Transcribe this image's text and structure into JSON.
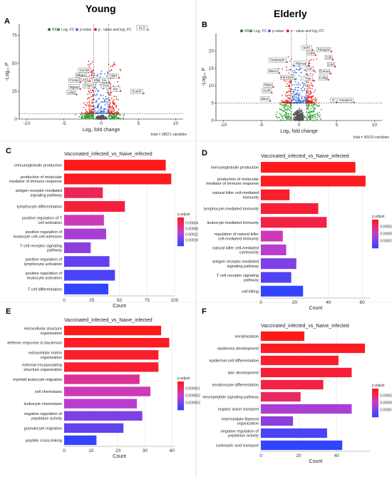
{
  "header": {
    "left_title": "Young",
    "right_title": "Elderly"
  },
  "volcano_legend": {
    "ns": "NS",
    "fc": "Log₂ FC",
    "p": "p-value",
    "both": "p - value and log₂ FC"
  },
  "colors": {
    "ns": "#555555",
    "fc": "#2e9d2e",
    "p": "#3b6fd8",
    "both": "#e0231e",
    "grad_high": "#ff1a1a",
    "grad_low": "#3344ff"
  },
  "chart_data": [
    {
      "panel": "A",
      "type": "scatter",
      "subtype": "volcano",
      "xlabel": "Log₂ fold change",
      "ylabel": "-Log₁₀ P",
      "xlim": [
        -11,
        11
      ],
      "ylim": [
        0,
        85
      ],
      "xticks": [
        "-10",
        "-5",
        "0",
        "5",
        "10"
      ],
      "yticks": [
        "0",
        "25",
        "50",
        "75"
      ],
      "fc_cutoff": 1,
      "p_cutoff_y": 5,
      "total": "total = 38521 variables",
      "labels": [
        {
          "text": "Il17f",
          "x": 6.3,
          "y": 80
        },
        {
          "text": "Cxcl15",
          "x": -1.3,
          "y": 42
        },
        {
          "text": "Mfap4",
          "x": -1.9,
          "y": 37.5
        },
        {
          "text": "Lcn2",
          "x": -1.5,
          "y": 34
        },
        {
          "text": "F13a1",
          "x": -2.8,
          "y": 33
        },
        {
          "text": "Sftpc",
          "x": 0.3,
          "y": 33
        },
        {
          "text": "C3ar1",
          "x": -0.9,
          "y": 28
        },
        {
          "text": "Mgarp",
          "x": -2.8,
          "y": 27
        },
        {
          "text": "Ly6g",
          "x": -3.3,
          "y": 22
        },
        {
          "text": "Ctla4",
          "x": 2.4,
          "y": 37
        },
        {
          "text": "Iris",
          "x": 1.1,
          "y": 33
        },
        {
          "text": "Ccrs",
          "x": 1.3,
          "y": 28
        },
        {
          "text": "Il4i",
          "x": 2.6,
          "y": 25
        },
        {
          "text": "Scarf2",
          "x": 5.7,
          "y": 23
        }
      ]
    },
    {
      "panel": "B",
      "type": "scatter",
      "subtype": "volcano",
      "xlabel": "Log₂ fold change",
      "ylabel": "-Log₁₀ P",
      "xlim": [
        -11,
        11
      ],
      "ylim": [
        0,
        25
      ],
      "xticks": [
        "-10",
        "-5",
        "0",
        "5",
        "10"
      ],
      "yticks": [
        "0",
        "5",
        "10",
        "15",
        "20"
      ],
      "fc_cutoff": 1,
      "p_cutoff_y": 5,
      "total": "total = 40103 variables",
      "labels": [
        {
          "text": "Ikzf3",
          "x": 1.8,
          "y": 20.3
        },
        {
          "text": "Pla2g2d",
          "x": 4.3,
          "y": 19.8
        },
        {
          "text": "Cd6",
          "x": 2.2,
          "y": 18.8
        },
        {
          "text": "Cd5",
          "x": 4.5,
          "y": 17.5
        },
        {
          "text": "Serpina3n",
          "x": -1.6,
          "y": 16.8
        },
        {
          "text": "Ptprcap",
          "x": 1.3,
          "y": 15.8
        },
        {
          "text": "Cd4",
          "x": 4.8,
          "y": 15.5
        },
        {
          "text": "Lat",
          "x": 2.0,
          "y": 14.3
        },
        {
          "text": "Eomes",
          "x": 4.2,
          "y": 13.5
        },
        {
          "text": "Marco",
          "x": -2.6,
          "y": 13.6
        },
        {
          "text": "Fam110c",
          "x": -0.5,
          "y": 11.8
        },
        {
          "text": "Trgc",
          "x": 1.9,
          "y": 11.5
        },
        {
          "text": "Cd3g",
          "x": 3.9,
          "y": 11.7
        },
        {
          "text": "Nxpe",
          "x": -3.4,
          "y": 9.6
        },
        {
          "text": "Scd3",
          "x": -3.6,
          "y": 8.0
        },
        {
          "text": "Bex4",
          "x": -3.8,
          "y": 5.6
        },
        {
          "text": "Tr",
          "x": 5.0,
          "y": 5.2
        },
        {
          "text": "Trav6d-6",
          "x": 7.3,
          "y": 5.2
        }
      ]
    },
    {
      "panel": "C",
      "type": "bar",
      "orientation": "horizontal",
      "title": "Vaccinated_infected_vs_Naive_infected",
      "xlabel": "Count",
      "xlim": [
        0,
        100
      ],
      "xticks": [
        "0",
        "25",
        "50",
        "75",
        "100"
      ],
      "legend_title": "p.adjust",
      "legend_ticks": [
        "0.00004",
        "0.00008",
        "0.00012",
        "0.00016"
      ],
      "categories": [
        "immunoglobulin production",
        "production of molecular\nmediator of immune response",
        "antigen receptor-mediated\nsignaling pathway",
        "lymphocyte differentiation",
        "positive regulation of T\ncell activation",
        "positive regulation of\nleukocyte cell-cell adhesion",
        "T cell receptor signaling\npathway",
        "positive regulation of\nlymphocyte activation",
        "positive regulation of\nleukocyte activation",
        "T cell differentiation"
      ],
      "values": [
        92,
        97,
        35,
        55,
        36,
        38,
        24,
        41,
        46,
        40
      ],
      "p_adjust_rank": [
        0.0,
        0.02,
        0.18,
        0.1,
        0.45,
        0.6,
        0.7,
        0.85,
        0.92,
        1.0
      ]
    },
    {
      "panel": "D",
      "type": "bar",
      "orientation": "horizontal",
      "title": "Vaccinated_infected_vs_Naive_infected",
      "xlabel": "Count",
      "xlim": [
        0,
        65
      ],
      "xticks": [
        "0",
        "20",
        "40",
        "60"
      ],
      "legend_title": "p.adjust",
      "legend_ticks": [
        "0.000025",
        "0.000050",
        "0.000075"
      ],
      "categories": [
        "immunoglobulin production",
        "production of molecular\nmediator of immune response",
        "natural killer cell-mediated\nimmunity",
        "lymphocyte-mediated immunity",
        "leukocyte-mediated immunity",
        "regulation of natural killer\ncell-mediated immunity",
        "natural killer cell-mediated\ncytotoxicity",
        "antigen receptor-mediated\nsignaling pathway",
        "T cell receptor signaling\npathway",
        "cell killing"
      ],
      "values": [
        56,
        62,
        17,
        34,
        39,
        13,
        15,
        21,
        18,
        25
      ],
      "p_adjust_rank": [
        0.0,
        0.02,
        0.05,
        0.08,
        0.12,
        0.45,
        0.55,
        0.75,
        0.9,
        1.0
      ]
    },
    {
      "panel": "E",
      "type": "bar",
      "orientation": "horizontal",
      "title": "Vaccinated_infected_vs_Naive_infected",
      "xlabel": "Count",
      "xlim": [
        0,
        41
      ],
      "xticks": [
        "0",
        "10",
        "20",
        "30",
        "40"
      ],
      "legend_title": "p.adjust",
      "legend_ticks": [
        "0.000001",
        "0.000002",
        "0.000003"
      ],
      "categories": [
        "extracellular structure\norganization",
        "defense response to bacterium",
        "extracellular matrix\norganization",
        "external encapsulating\nstructure organization",
        "myeloid leukocyte migration",
        "cell chemotaxis",
        "leukocyte chemotaxis",
        "negative regulation of\npeptidase activity",
        "granulocyte migration",
        "peptide cross-linking"
      ],
      "values": [
        36,
        39,
        35,
        35,
        28,
        32,
        27,
        29,
        22,
        12
      ],
      "p_adjust_rank": [
        0.0,
        0.03,
        0.05,
        0.07,
        0.35,
        0.45,
        0.55,
        0.75,
        0.85,
        1.0
      ]
    },
    {
      "panel": "F",
      "type": "bar",
      "orientation": "horizontal",
      "title": "Vaccinated_infected_vs_Naive_infected",
      "xlabel": "Count",
      "xlim": [
        0,
        58
      ],
      "xticks": [
        "0",
        "20",
        "40"
      ],
      "legend_title": "p.adjust",
      "legend_ticks": [
        "0.000025",
        "0.000050",
        "0.000075"
      ],
      "categories": [
        "keratinization",
        "epidermis development",
        "epidermal cell differentiation",
        "skin development",
        "keratinocyte differentiation",
        "neuropeptide signaling pathway",
        "organic anion transport",
        "intermediate filament\norganization",
        "negative regulation of\npeptidase activity",
        "carboxylic acid transport"
      ],
      "values": [
        23,
        55,
        41,
        48,
        33,
        21,
        48,
        17,
        35,
        43
      ],
      "p_adjust_rank": [
        0.0,
        0.02,
        0.05,
        0.08,
        0.12,
        0.2,
        0.6,
        0.7,
        0.92,
        1.0
      ]
    }
  ]
}
